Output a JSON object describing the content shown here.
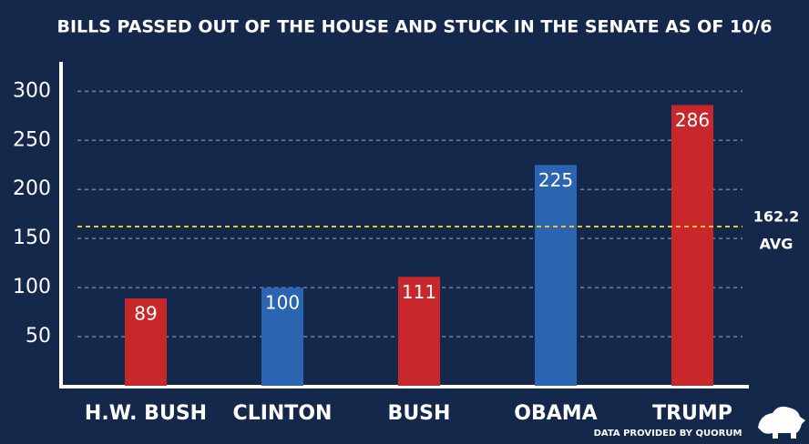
{
  "chart_data": {
    "type": "bar",
    "title": "BILLS PASSED OUT OF THE HOUSE AND STUCK IN THE SENATE AS OF 10/6",
    "categories": [
      "H.W. BUSH",
      "CLINTON",
      "BUSH",
      "OBAMA",
      "TRUMP"
    ],
    "values": [
      89,
      100,
      111,
      225,
      286
    ],
    "colors": [
      "#c8282b",
      "#2b64b0",
      "#c8282b",
      "#2b64b0",
      "#c8282b"
    ],
    "ylim": [
      0,
      330
    ],
    "yticks": [
      50,
      100,
      150,
      200,
      250,
      300
    ],
    "grid": true,
    "average": 162.2,
    "average_label": "AVG",
    "average_color": "#f2c12e",
    "source": "DATA PROVIDED BY QUORUM"
  }
}
